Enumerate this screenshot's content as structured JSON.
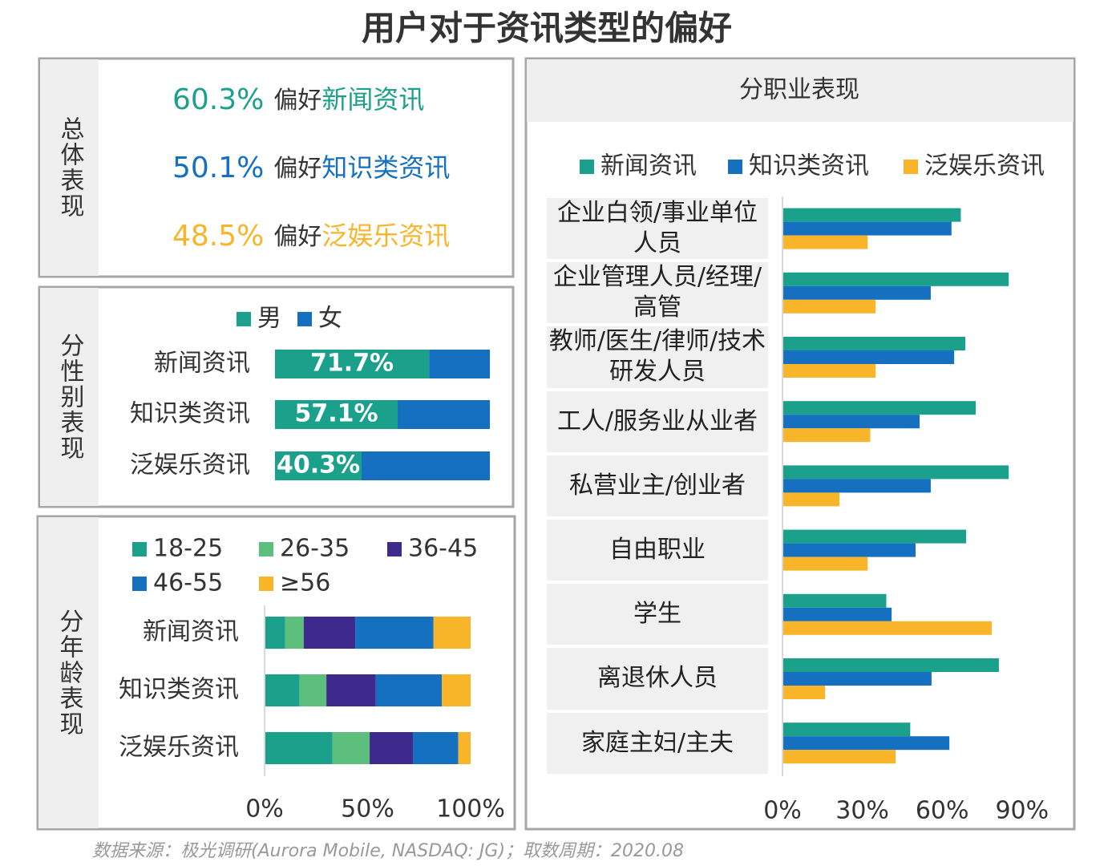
{
  "title": "用户对于资讯类型的偏好",
  "overall": {
    "label": "总体表现",
    "items": [
      {
        "value": "60.3%",
        "text": "偏好",
        "name": "新闻资讯",
        "color": "#1ba08b"
      },
      {
        "value": "50.1%",
        "text": "偏好",
        "name": "知识类资讯",
        "color": "#1570c0"
      },
      {
        "value": "48.5%",
        "text": "偏好",
        "name": "泛娱乐资讯",
        "color": "#f9b52a"
      }
    ]
  },
  "chart_data": [
    {
      "type": "stacked_barh",
      "panel_label": "分性别表现",
      "categories": [
        "新闻资讯",
        "知识类资讯",
        "泛娱乐资讯"
      ],
      "xlim": [
        0,
        100
      ],
      "series": [
        {
          "name": "男",
          "color": "#1ba08b",
          "values": [
            71.7,
            57.1,
            40.3
          ],
          "value_labels": [
            "71.7%",
            "57.1%",
            "40.3%"
          ]
        },
        {
          "name": "女",
          "color": "#1570c0",
          "values": [
            28.3,
            42.9,
            59.7
          ]
        }
      ]
    },
    {
      "type": "stacked_barh",
      "panel_label": "分年龄表现",
      "categories": [
        "新闻资讯",
        "知识类资讯",
        "泛娱乐资讯"
      ],
      "xlim": [
        0,
        100
      ],
      "xticks": [
        {
          "value": 0,
          "label": "0%"
        },
        {
          "value": 50,
          "label": "50%"
        },
        {
          "value": 100,
          "label": "100%"
        }
      ],
      "series": [
        {
          "name": "18-25",
          "color": "#1ba08b",
          "values": [
            10,
            17,
            33
          ]
        },
        {
          "name": "26-35",
          "color": "#5cbf7c",
          "values": [
            9,
            13,
            18
          ]
        },
        {
          "name": "36-45",
          "color": "#3d2a8c",
          "values": [
            25,
            24,
            21
          ]
        },
        {
          "name": "46-55",
          "color": "#1570c0",
          "values": [
            38,
            32,
            22
          ]
        },
        {
          "name": "≥56",
          "color": "#f9b52a",
          "values": [
            18,
            14,
            6
          ]
        }
      ]
    },
    {
      "type": "grouped_barh",
      "panel_label": "分职业表现",
      "categories": [
        "企业白领/事业单位人员",
        "企业管理人员/经理/高管",
        "教师/医生/律师/技术研发人员",
        "工人/服务业从业者",
        "私营业主/创业者",
        "自由职业",
        "学生",
        "离退休人员",
        "家庭主妇/主夫"
      ],
      "xlim": [
        0,
        100
      ],
      "xticks": [
        {
          "value": 0,
          "label": "0%"
        },
        {
          "value": 30,
          "label": "30%"
        },
        {
          "value": 60,
          "label": "60%"
        },
        {
          "value": 90,
          "label": "90%"
        }
      ],
      "series": [
        {
          "name": "新闻资讯",
          "color": "#1ba08b",
          "values": [
            67,
            85,
            68.7,
            72.6,
            85,
            69,
            39,
            81.3,
            48
          ]
        },
        {
          "name": "知识类资讯",
          "color": "#1570c0",
          "values": [
            63.5,
            55.7,
            64.5,
            51.5,
            55.7,
            50,
            41,
            56,
            62.7
          ]
        },
        {
          "name": "泛娱乐资讯",
          "color": "#f9b52a",
          "values": [
            32,
            35,
            35,
            33,
            21.4,
            32,
            78.6,
            16,
            42.5
          ]
        }
      ]
    }
  ],
  "source": "数据来源：极光调研(Aurora Mobile, NASDAQ: JG)；取数周期：2020.08"
}
